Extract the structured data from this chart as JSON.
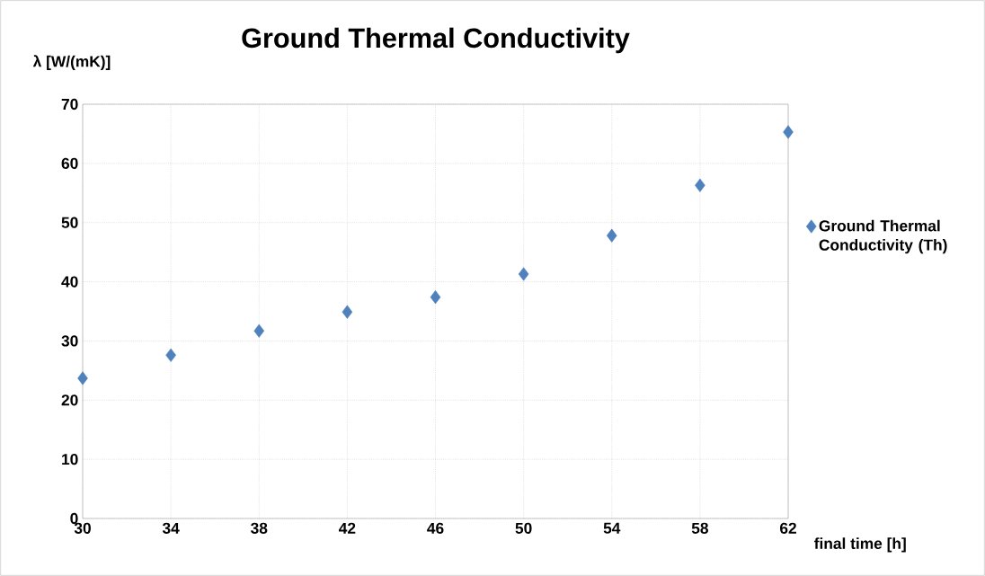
{
  "chart_data": {
    "type": "scatter",
    "title": "Ground Thermal Conductivity",
    "xlabel": "final time [h]",
    "ylabel": "λ [W/(mK)]",
    "x": [
      30,
      34,
      38,
      42,
      46,
      50,
      54,
      58,
      62
    ],
    "series": [
      {
        "name": "Ground Thermal Conductivity (Th)",
        "color": "#4f81bd",
        "values": [
          23.7,
          27.6,
          31.7,
          34.9,
          37.4,
          41.3,
          47.8,
          56.3,
          65.3
        ]
      }
    ],
    "xlim": [
      30,
      62
    ],
    "xticks": [
      30,
      34,
      38,
      42,
      46,
      50,
      54,
      58,
      62
    ],
    "ylim": [
      0,
      70
    ],
    "yticks": [
      0,
      10,
      20,
      30,
      40,
      50,
      60,
      70
    ],
    "grid": true,
    "legend": "right",
    "marker": "diamond"
  }
}
